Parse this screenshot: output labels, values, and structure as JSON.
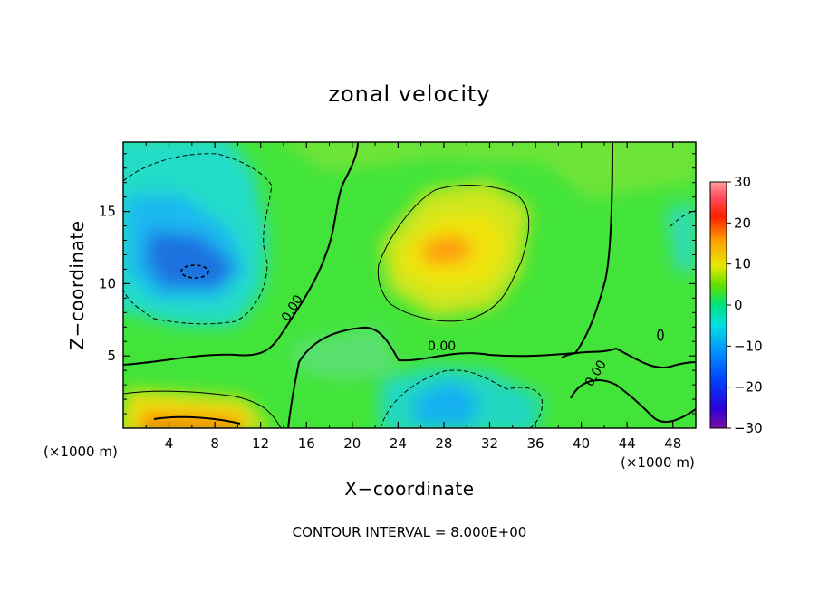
{
  "chart_data": {
    "type": "heatmap",
    "title": "zonal velocity",
    "xlabel": "X−coordinate",
    "ylabel": "Z−coordinate",
    "x_unit_left": "(×1000 m)",
    "x_unit_right": "(×1000 m)",
    "footer": "CONTOUR INTERVAL = 8.000E+00",
    "xlim": [
      0,
      50
    ],
    "ylim": [
      0,
      19.8
    ],
    "x_ticks": [
      4,
      8,
      12,
      16,
      20,
      24,
      28,
      32,
      36,
      40,
      44,
      48
    ],
    "x_tick_labels": [
      "4",
      "8",
      "12",
      "16",
      "20",
      "24",
      "28",
      "32",
      "36",
      "40",
      "44",
      "48"
    ],
    "y_ticks": [
      5,
      10,
      15
    ],
    "y_tick_labels": [
      "5",
      "10",
      "15"
    ],
    "colorbar": {
      "min": -30,
      "max": 30,
      "ticks": [
        30,
        20,
        10,
        0,
        -10,
        -20,
        -30
      ],
      "tick_labels": [
        "30",
        "20",
        "10",
        "0",
        "−10",
        "−20",
        "−30"
      ]
    },
    "contour_interval": 8.0,
    "contour_labels": [
      "0.00",
      "0.00",
      "0.00"
    ],
    "features": [
      {
        "name": "negative core upper-left",
        "x": 6,
        "z": 10.8,
        "value": -14
      },
      {
        "name": "positive core center",
        "x": 28,
        "z": 12.3,
        "value": 13
      },
      {
        "name": "positive core bottom-left",
        "x": 5,
        "z": 0.4,
        "value": 17
      },
      {
        "name": "negative core bottom",
        "x": 29,
        "z": 2.0,
        "value": -13
      }
    ],
    "colors": {
      "strong_negative": "#1a6fd6",
      "negative": "#20d6d6",
      "zero": "#2ee62e",
      "positive": "#e6e600",
      "strong_positive": "#ff8800"
    }
  }
}
